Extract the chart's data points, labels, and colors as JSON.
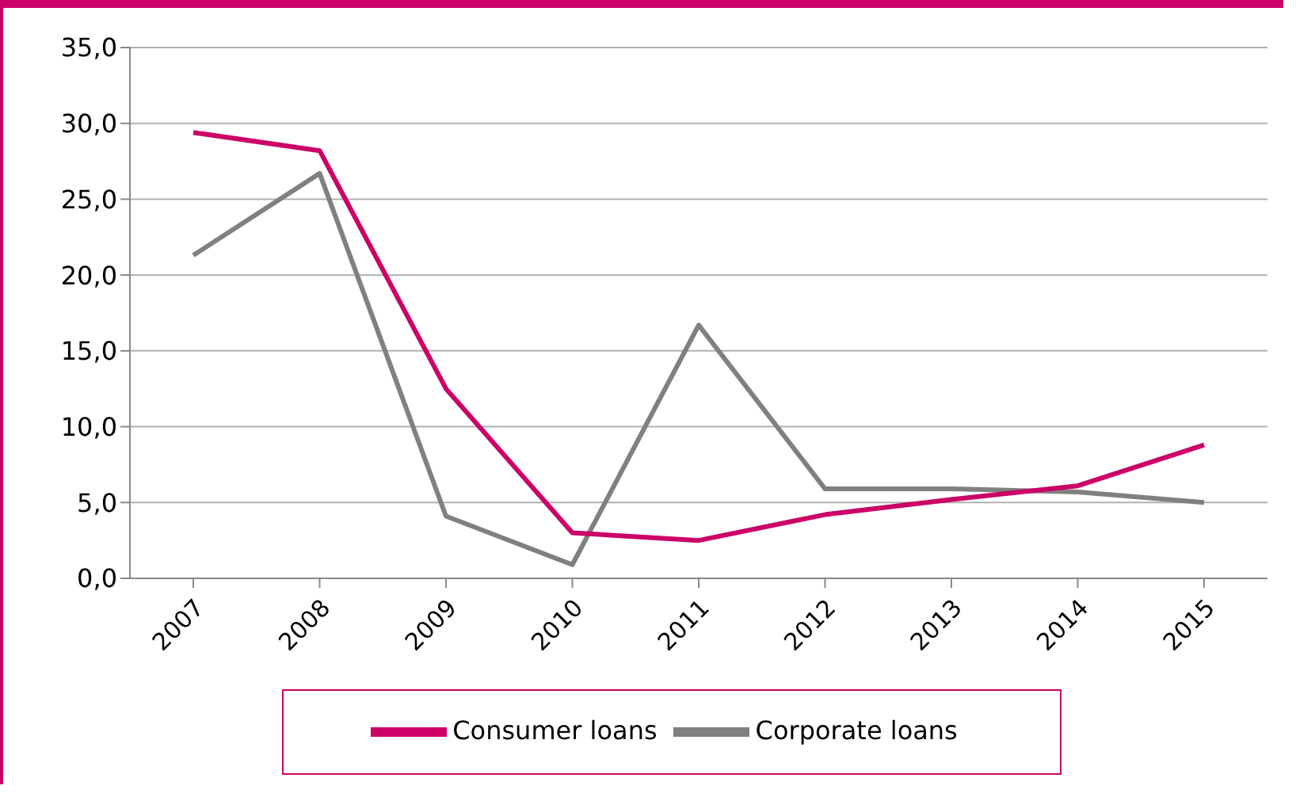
{
  "chart_data": {
    "type": "line",
    "categories": [
      "2007",
      "2008",
      "2009",
      "2010",
      "2011",
      "2012",
      "2013",
      "2014",
      "2015"
    ],
    "series": [
      {
        "name": "Corporate loans",
        "color": "#808080",
        "values": [
          21.3,
          26.7,
          4.1,
          0.9,
          16.7,
          5.9,
          5.9,
          5.7,
          5.0
        ]
      },
      {
        "name": "Consumer loans",
        "color": "#cc0066",
        "values": [
          29.4,
          28.2,
          12.5,
          3.0,
          2.5,
          4.2,
          5.2,
          6.1,
          8.8
        ]
      }
    ],
    "ylim": [
      0,
      35
    ],
    "yticks": [
      {
        "value": 0,
        "label": "0,0"
      },
      {
        "value": 5,
        "label": "5,0"
      },
      {
        "value": 10,
        "label": "10,0"
      },
      {
        "value": 15,
        "label": "15,0"
      },
      {
        "value": 20,
        "label": "20,0"
      },
      {
        "value": 25,
        "label": "25,0"
      },
      {
        "value": 30,
        "label": "30,0"
      },
      {
        "value": 35,
        "label": "35,0"
      }
    ],
    "grid": "y",
    "legend": "bottom",
    "marker": "none",
    "line_style": "solid"
  }
}
